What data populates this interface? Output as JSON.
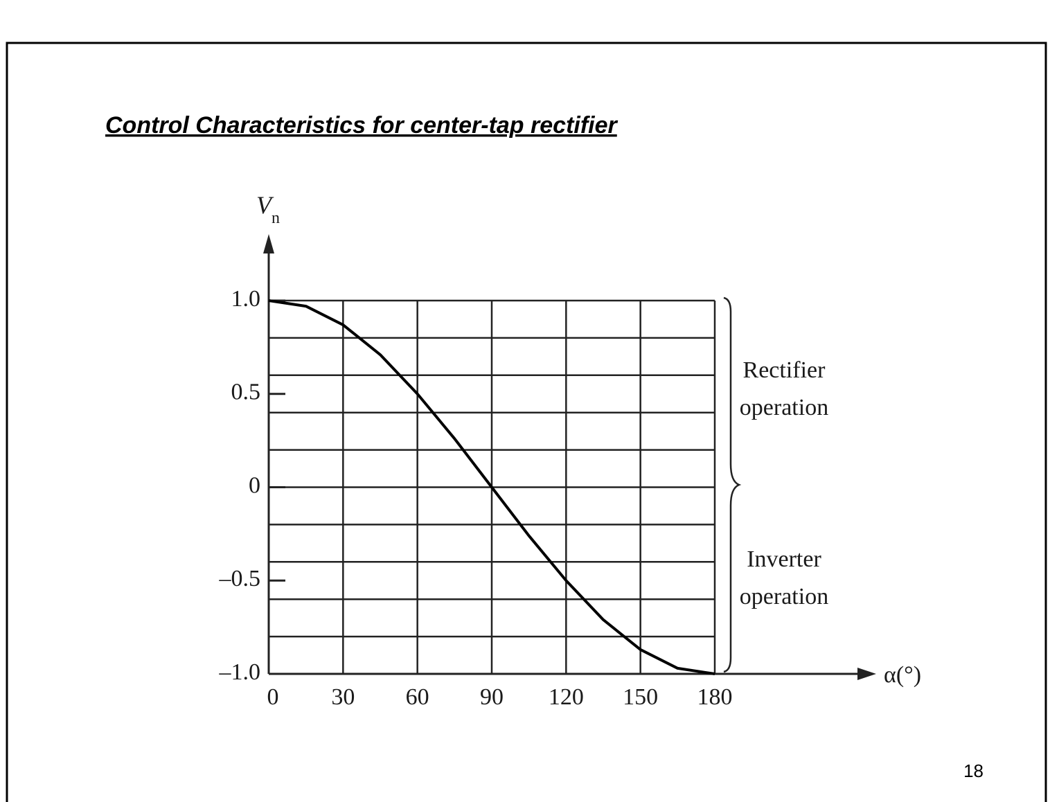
{
  "chart_data": {
    "type": "line",
    "title": "Control Characteristics for center-tap rectifier",
    "page_number": "18",
    "xlabel": "α(°)",
    "ylabel": {
      "main": "V",
      "sub": "n"
    },
    "x": [
      0,
      15,
      30,
      45,
      60,
      75,
      90,
      105,
      120,
      135,
      150,
      165,
      180
    ],
    "series": [
      {
        "color": "#000000",
        "values": [
          1,
          0.97,
          0.87,
          0.71,
          0.5,
          0.26,
          0,
          -0.26,
          -0.5,
          -0.71,
          -0.87,
          -0.97,
          -1
        ]
      }
    ],
    "xlim": [
      0,
      180
    ],
    "xticks": [
      0,
      30,
      60,
      90,
      120,
      150,
      180
    ],
    "ylim": [
      -1,
      1
    ],
    "yticks": [
      {
        "value": 1,
        "label": "1.0"
      },
      {
        "value": 0.5,
        "label": "0.5"
      },
      0,
      {
        "value": -0.5,
        "label": "–0.5"
      },
      {
        "value": -1,
        "label": "–1.0"
      }
    ],
    "ygrid": [
      -1,
      -0.8,
      -0.6,
      -0.4,
      -0.2,
      0,
      0.2,
      0.4,
      0.6,
      0.8,
      1
    ],
    "grid": true,
    "annotations": [
      {
        "lines": [
          "Rectifier",
          "operation"
        ]
      },
      {
        "lines": [
          "Inverter",
          "operation"
        ]
      }
    ]
  }
}
